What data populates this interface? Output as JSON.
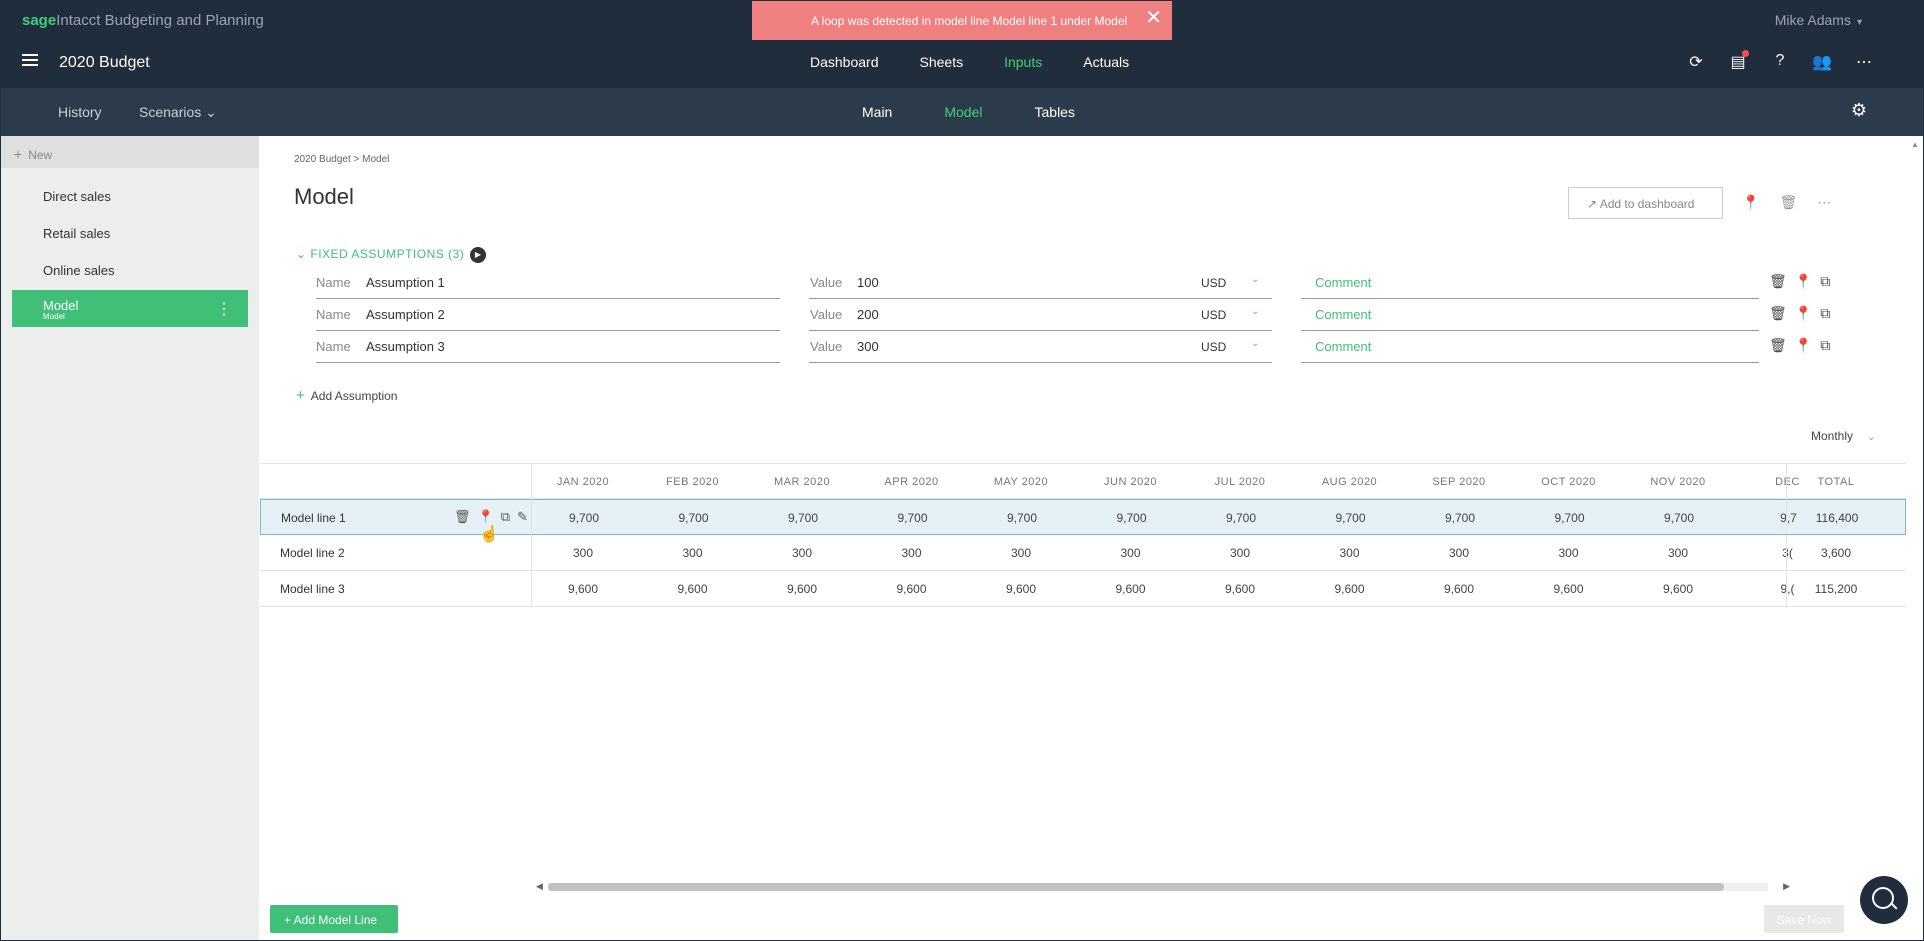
{
  "brand": {
    "sage": "sage",
    "intacct": "Intacct",
    "product": "Budgeting and Planning"
  },
  "user": {
    "name": "Mike Adams"
  },
  "app": {
    "title": "2020 Budget"
  },
  "topnav": [
    "Dashboard",
    "Sheets",
    "Inputs",
    "Actuals"
  ],
  "toast": {
    "message": "A loop was detected in model line Model line 1 under Model"
  },
  "subbar": {
    "history": "History",
    "scenarios": "Scenarios",
    "tabs": [
      "Main",
      "Model",
      "Tables"
    ]
  },
  "sidebar": {
    "new_label": "New",
    "items": [
      "Direct sales",
      "Retail sales",
      "Online sales"
    ],
    "selected": {
      "title": "Model",
      "subtitle": "Model"
    }
  },
  "breadcrumb": "2020 Budget > Model",
  "page_title": "Model",
  "add_to_dashboard": "Add to dashboard",
  "fixed_assumptions": {
    "header": "FIXED ASSUMPTIONS (3)",
    "name_label": "Name",
    "value_label": "Value",
    "comment_label": "Comment",
    "rows": [
      {
        "name": "Assumption 1",
        "value": "100",
        "currency": "USD"
      },
      {
        "name": "Assumption 2",
        "value": "200",
        "currency": "USD"
      },
      {
        "name": "Assumption 3",
        "value": "300",
        "currency": "USD"
      }
    ],
    "add_label": "Add Assumption"
  },
  "period_select": "Monthly",
  "grid": {
    "headers": [
      "JAN 2020",
      "FEB 2020",
      "MAR 2020",
      "APR 2020",
      "MAY 2020",
      "JUN 2020",
      "JUL 2020",
      "AUG 2020",
      "SEP 2020",
      "OCT 2020",
      "NOV 2020",
      "DEC"
    ],
    "total_header": "TOTAL",
    "rows": [
      {
        "name": "Model line 1",
        "values": [
          "9,700",
          "9,700",
          "9,700",
          "9,700",
          "9,700",
          "9,700",
          "9,700",
          "9,700",
          "9,700",
          "9,700",
          "9,700",
          "9,7"
        ],
        "total": "116,400"
      },
      {
        "name": "Model line 2",
        "values": [
          "300",
          "300",
          "300",
          "300",
          "300",
          "300",
          "300",
          "300",
          "300",
          "300",
          "300",
          "3("
        ],
        "total": "3,600"
      },
      {
        "name": "Model line 3",
        "values": [
          "9,600",
          "9,600",
          "9,600",
          "9,600",
          "9,600",
          "9,600",
          "9,600",
          "9,600",
          "9,600",
          "9,600",
          "9,600",
          "9,("
        ],
        "total": "115,200"
      }
    ]
  },
  "buttons": {
    "add_model_line": "+ Add Model Line",
    "save_now": "Save Now"
  },
  "colors": {
    "accent": "#3fbf78",
    "appbar": "#1f2d3d",
    "subbar": "#2c3b4c",
    "toast": "#f08080"
  }
}
